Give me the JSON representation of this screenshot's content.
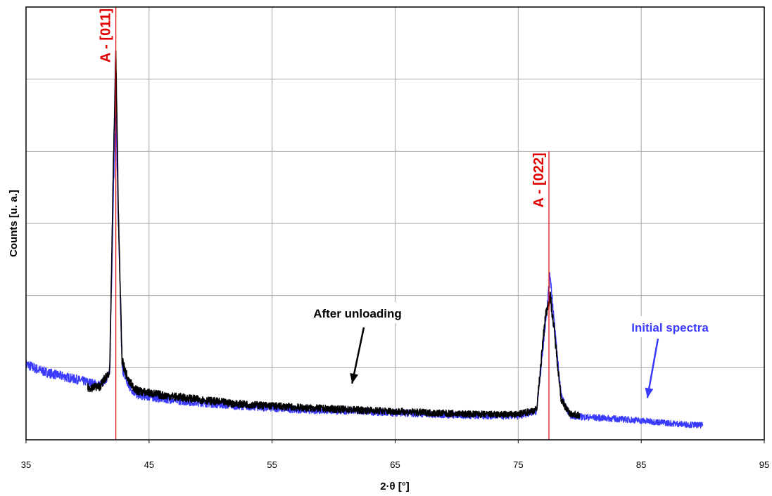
{
  "chart_data": {
    "type": "line",
    "title": "",
    "xlabel": "2·θ [°]",
    "ylabel": "Counts [u. a.]",
    "xlim": [
      35,
      95
    ],
    "ylim": [
      0,
      6
    ],
    "x_ticks": [
      "35",
      "45",
      "55",
      "65",
      "75",
      "85",
      "95"
    ],
    "y_ticks_labeled": false,
    "grid": true,
    "legend": "none",
    "series": [
      {
        "name": "Initial spectra",
        "color": "#3b3bff",
        "x": [
          35,
          36,
          37,
          38,
          39,
          40,
          41,
          41.8,
          42.1,
          42.3,
          42.5,
          42.8,
          43.3,
          44,
          46,
          48,
          50,
          52,
          55,
          58,
          61,
          64,
          67,
          70,
          73,
          75,
          76.5,
          77.2,
          77.6,
          78,
          78.5,
          79.2,
          80,
          82,
          84,
          86,
          88,
          90
        ],
        "y": [
          1.05,
          0.97,
          0.92,
          0.88,
          0.84,
          0.8,
          0.76,
          0.9,
          3.4,
          4.6,
          3.0,
          1.0,
          0.75,
          0.62,
          0.57,
          0.53,
          0.5,
          0.47,
          0.44,
          0.41,
          0.4,
          0.38,
          0.36,
          0.34,
          0.33,
          0.33,
          0.4,
          1.6,
          2.3,
          1.5,
          0.6,
          0.34,
          0.32,
          0.3,
          0.28,
          0.25,
          0.22,
          0.2
        ]
      },
      {
        "name": "After unloading",
        "color": "#000000",
        "x": [
          40,
          41,
          41.8,
          42.1,
          42.3,
          42.5,
          42.8,
          43.3,
          44,
          46,
          48,
          50,
          52,
          55,
          58,
          61,
          64,
          67,
          70,
          73,
          75,
          76.5,
          77.2,
          77.6,
          78,
          78.5,
          79.2,
          80
        ],
        "y": [
          0.72,
          0.74,
          0.95,
          3.8,
          5.4,
          3.2,
          1.1,
          0.82,
          0.68,
          0.62,
          0.58,
          0.54,
          0.5,
          0.47,
          0.44,
          0.42,
          0.4,
          0.38,
          0.36,
          0.35,
          0.35,
          0.42,
          1.7,
          2.0,
          1.4,
          0.55,
          0.36,
          0.34
        ]
      }
    ],
    "markers": [
      {
        "label": "A - [011]",
        "x": 42.3,
        "y_top": 6.0
      },
      {
        "label": "A - [022]",
        "x": 77.5,
        "y_top": 4.0
      }
    ],
    "annotations": [
      {
        "text": "After unloading",
        "color": "#000000",
        "arrow_to_x": 61.5,
        "arrow_to_y": 0.78
      },
      {
        "text": "Initial spectra",
        "color": "#3b3bff",
        "arrow_to_x": 85.5,
        "arrow_to_y": 0.58
      }
    ]
  }
}
